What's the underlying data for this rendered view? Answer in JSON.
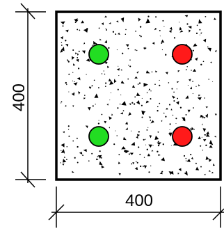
{
  "dimensions": {
    "width_label": "400",
    "height_label": "400"
  },
  "section": {
    "concrete_fill": "#ffffff",
    "outline_color": "#000000",
    "aggregate_color": "#000000"
  },
  "rebars": [
    {
      "position": "top-left",
      "color": "#22dd22"
    },
    {
      "position": "top-right",
      "color": "#ff1a1a"
    },
    {
      "position": "bottom-left",
      "color": "#22dd22"
    },
    {
      "position": "bottom-right",
      "color": "#ff1a1a"
    }
  ]
}
